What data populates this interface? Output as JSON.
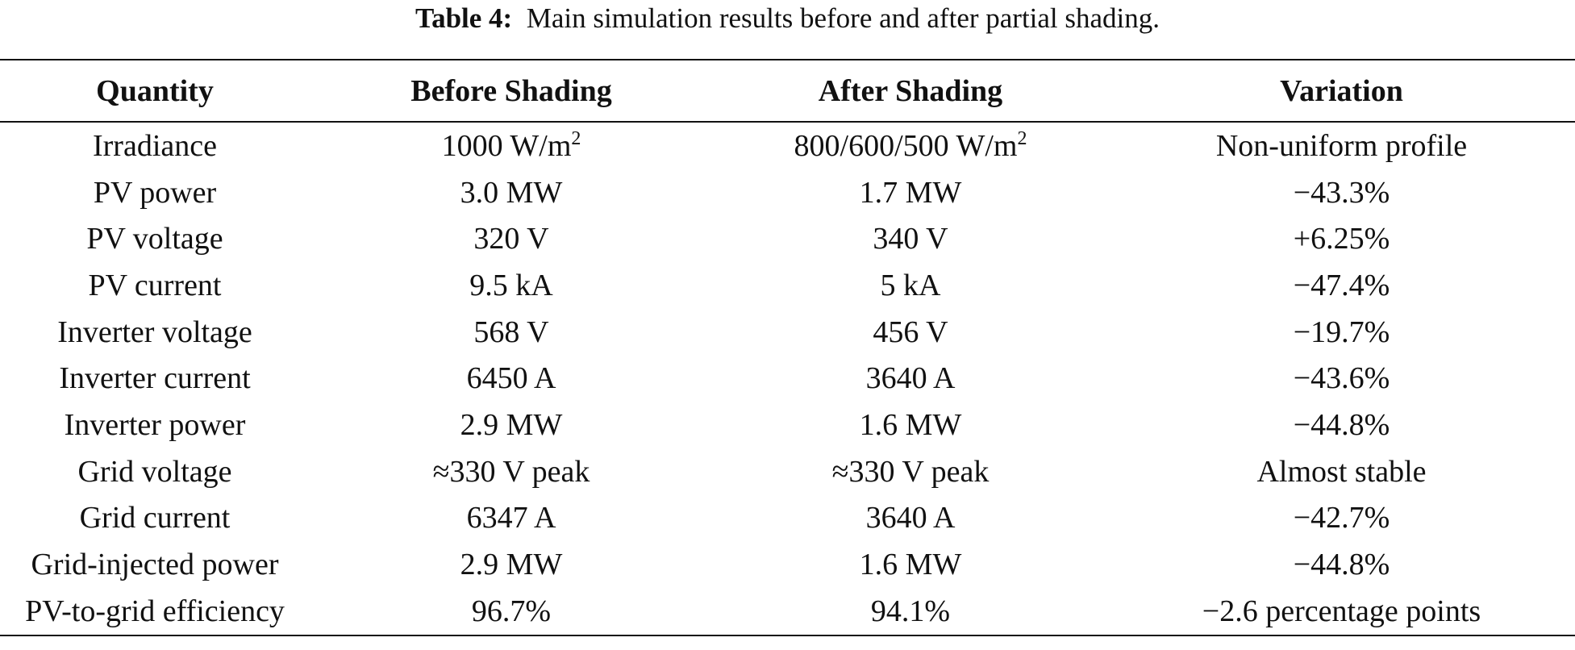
{
  "caption": {
    "label": "Table 4:",
    "text": "Main simulation results before and after partial shading."
  },
  "headers": [
    "Quantity",
    "Before Shading",
    "After Shading",
    "Variation"
  ],
  "rows": [
    {
      "quantity": "Irradiance",
      "before": "1000 W/m",
      "before_sup": "2",
      "after": "800/600/500 W/m",
      "after_sup": "2",
      "variation": "Non-uniform profile"
    },
    {
      "quantity": "PV power",
      "before": "3.0 MW",
      "after": "1.7 MW",
      "variation": "−43.3%"
    },
    {
      "quantity": "PV voltage",
      "before": "320 V",
      "after": "340 V",
      "variation": "+6.25%"
    },
    {
      "quantity": "PV current",
      "before": "9.5 kA",
      "after": "5 kA",
      "variation": "−47.4%"
    },
    {
      "quantity": "Inverter voltage",
      "before": "568 V",
      "after": "456 V",
      "variation": "−19.7%"
    },
    {
      "quantity": "Inverter current",
      "before": "6450 A",
      "after": "3640 A",
      "variation": "−43.6%"
    },
    {
      "quantity": "Inverter power",
      "before": "2.9 MW",
      "after": "1.6 MW",
      "variation": "−44.8%"
    },
    {
      "quantity": "Grid voltage",
      "before": "≈330 V peak",
      "after": "≈330 V peak",
      "variation": "Almost stable"
    },
    {
      "quantity": "Grid current",
      "before": "6347 A",
      "after": "3640 A",
      "variation": "−42.7%"
    },
    {
      "quantity": "Grid-injected power",
      "before": "2.9 MW",
      "after": "1.6 MW",
      "variation": "−44.8%"
    },
    {
      "quantity": "PV-to-grid efficiency",
      "before": "96.7%",
      "after": "94.1%",
      "variation": "−2.6 percentage points"
    }
  ]
}
